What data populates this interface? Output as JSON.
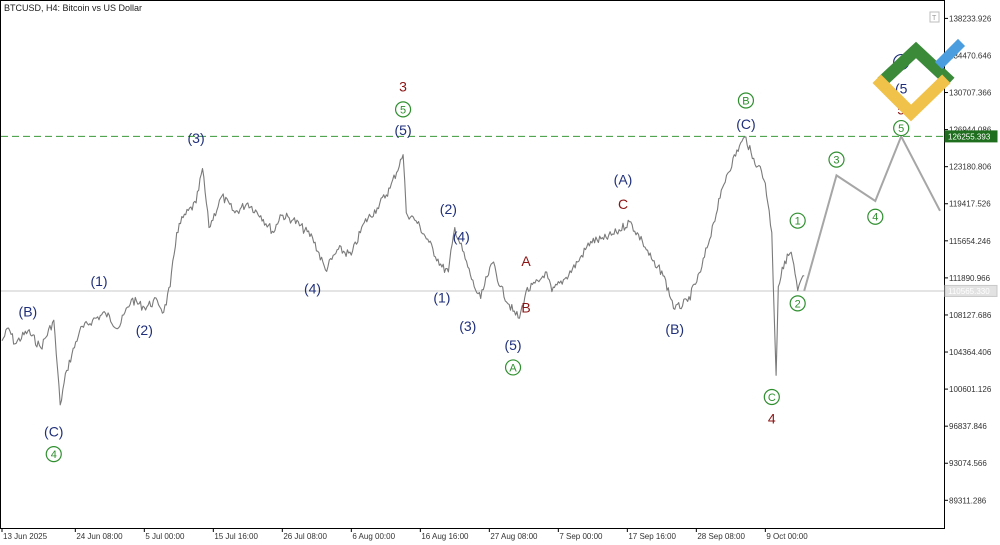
{
  "header": {
    "title": "BTCUSD, H4:  Bitcoin vs US Dollar"
  },
  "colors": {
    "price": "#7a7a7a",
    "forecast": "#a6a6a6",
    "navy": "#1f2f7a",
    "green": "#2f8f2f",
    "dark_red": "#8b1414",
    "resistance": "#3a9a3a",
    "current_price_line": "#c8c8c8",
    "logo_green": "#3a8a3a",
    "logo_yellow": "#f1c24a",
    "logo_blue": "#4a9ee0"
  },
  "chart_data": {
    "type": "line",
    "ylim": [
      86500,
      140000
    ],
    "y_ticks": [
      "138233.926",
      "134470.646",
      "130707.366",
      "126944.086",
      "123180.806",
      "119417.526",
      "115654.246",
      "111890.966",
      "108127.686",
      "104364.406",
      "100601.126",
      "96837.846",
      "93074.566",
      "89311.286"
    ],
    "x_ticks": [
      "13 Jun 2025",
      "24 Jun 08:00",
      "5 Jul 00:00",
      "15 Jul 16:00",
      "26 Jul 08:00",
      "6 Aug 00:00",
      "16 Aug 16:00",
      "27 Aug 08:00",
      "7 Sep 00:00",
      "17 Sep 16:00",
      "28 Sep 08:00",
      "9 Oct 00:00"
    ],
    "series": [
      {
        "kind": "price",
        "points": [
          [
            "13 Jun 2025",
            105500
          ],
          [
            "14 Jun 2025",
            106800
          ],
          [
            "15 Jun 2025",
            105200
          ],
          [
            "17 Jun 2025",
            106500
          ],
          [
            "19 Jun 2025",
            104800
          ],
          [
            "21 Jun 2025",
            107600
          ],
          [
            "22 Jun 2025",
            99000
          ],
          [
            "23 Jun 2025",
            102500
          ],
          [
            "25 Jun 2025",
            106500
          ],
          [
            "27 Jun 2025",
            107600
          ],
          [
            "29 Jun 2025",
            108300
          ],
          [
            "1 Jul 2025",
            106800
          ],
          [
            "3 Jul 2025",
            109700
          ],
          [
            "5 Jul 2025",
            108900
          ],
          [
            "7 Jul 2025",
            109600
          ],
          [
            "8 Jul 2025",
            108400
          ],
          [
            "9 Jul 2025",
            111000
          ],
          [
            "10 Jul 2025",
            116500
          ],
          [
            "11 Jul 2025",
            118000
          ],
          [
            "13 Jul 2025",
            119500
          ],
          [
            "14 Jul 2025",
            123000
          ],
          [
            "15 Jul 2025",
            117000
          ],
          [
            "17 Jul 2025",
            120200
          ],
          [
            "19 Jul 2025",
            118500
          ],
          [
            "21 Jul 2025",
            119500
          ],
          [
            "23 Jul 2025",
            118200
          ],
          [
            "25 Jul 2025",
            116500
          ],
          [
            "26 Jul 2025",
            118300
          ],
          [
            "28 Jul 2025",
            117800
          ],
          [
            "31 Jul 2025",
            116000
          ],
          [
            "2 Aug 2025",
            112700
          ],
          [
            "4 Aug 2025",
            114800
          ],
          [
            "6 Aug 2025",
            114200
          ],
          [
            "8 Aug 2025",
            117500
          ],
          [
            "10 Aug 2025",
            119000
          ],
          [
            "12 Aug 2025",
            121000
          ],
          [
            "14 Aug 2025",
            124400
          ],
          [
            "14 Aug 2025 12:00",
            118500
          ],
          [
            "16 Aug 2025",
            117700
          ],
          [
            "18 Aug 2025",
            115500
          ],
          [
            "20 Aug 2025",
            113000
          ],
          [
            "21 Aug 2025",
            112500
          ],
          [
            "22 Aug 2025",
            117000
          ],
          [
            "24 Aug 2025",
            113000
          ],
          [
            "25 Aug 2025",
            111000
          ],
          [
            "26 Aug 2025",
            109800
          ],
          [
            "27 Aug 2025",
            112000
          ],
          [
            "28 Aug 2025",
            113500
          ],
          [
            "29 Aug 2025",
            111000
          ],
          [
            "31 Aug 2025",
            108500
          ],
          [
            "1 Sep 2025",
            107800
          ],
          [
            "2 Sep 2025",
            110500
          ],
          [
            "4 Sep 2025",
            111500
          ],
          [
            "5 Sep 2025",
            112500
          ],
          [
            "6 Sep 2025",
            110500
          ],
          [
            "8 Sep 2025",
            111800
          ],
          [
            "10 Sep 2025",
            113500
          ],
          [
            "12 Sep 2025",
            115600
          ],
          [
            "14 Sep 2025",
            115800
          ],
          [
            "16 Sep 2025",
            116500
          ],
          [
            "18 Sep 2025",
            117600
          ],
          [
            "20 Sep 2025",
            115600
          ],
          [
            "22 Sep 2025",
            113000
          ],
          [
            "23 Sep 2025",
            112600
          ],
          [
            "25 Sep 2025",
            108700
          ],
          [
            "27 Sep 2025",
            109500
          ],
          [
            "29 Sep 2025",
            112500
          ],
          [
            "1 Oct 2025",
            117500
          ],
          [
            "2 Oct 2025",
            120000
          ],
          [
            "3 Oct 2025",
            122300
          ],
          [
            "5 Oct 2025",
            125300
          ],
          [
            "6 Oct 2025",
            126200
          ],
          [
            "7 Oct 2025",
            124000
          ],
          [
            "8 Oct 2025",
            123300
          ],
          [
            "9 Oct 2025",
            121500
          ],
          [
            "10 Oct 2025",
            116500
          ],
          [
            "10 Oct 2025 16:00",
            102000
          ],
          [
            "11 Oct 2025",
            111000
          ],
          [
            "12 Oct 2025",
            113600
          ],
          [
            "13 Oct 2025",
            114500
          ],
          [
            "14 Oct 2025",
            110600
          ],
          [
            "15 Oct 2025",
            112100
          ]
        ]
      },
      {
        "kind": "forecast",
        "points": [
          [
            "15 Oct 2025",
            110566
          ],
          [
            "20 Oct 2025",
            122300
          ],
          [
            "26 Oct 2025",
            119700
          ],
          [
            "30 Oct 2025",
            126255
          ],
          [
            "5 Nov 2025",
            118700
          ]
        ]
      }
    ],
    "reference_lines": [
      {
        "label": "126255.393",
        "value": 126255,
        "style": "dashed-green"
      },
      {
        "label": "110565.330",
        "value": 110566,
        "style": "solid-grey"
      }
    ],
    "annotations": [
      {
        "text": "(B)",
        "x": "17 Jun 2025",
        "y": 108500,
        "color": "navy",
        "circled": false
      },
      {
        "text": "(C)",
        "x": "21 Jun 2025",
        "y": 96300,
        "color": "navy",
        "circled": false
      },
      {
        "text": "4",
        "x": "21 Jun 2025",
        "y": 94000,
        "color": "green",
        "circled": true
      },
      {
        "text": "(1)",
        "x": "28 Jun 2025",
        "y": 111600,
        "color": "navy",
        "circled": false
      },
      {
        "text": "(2)",
        "x": "5 Jul 2025",
        "y": 106600,
        "color": "navy",
        "circled": false
      },
      {
        "text": "(3)",
        "x": "13 Jul 2025",
        "y": 126100,
        "color": "navy",
        "circled": false
      },
      {
        "text": "(4)",
        "x": "31 Jul 2025",
        "y": 110800,
        "color": "navy",
        "circled": false
      },
      {
        "text": "3",
        "x": "14 Aug 2025",
        "y": 131300,
        "color": "dark_red",
        "circled": false
      },
      {
        "text": "5",
        "x": "14 Aug 2025",
        "y": 129000,
        "color": "green",
        "circled": true
      },
      {
        "text": "(5)",
        "x": "14 Aug 2025",
        "y": 126900,
        "color": "navy",
        "circled": false
      },
      {
        "text": "(2)",
        "x": "21 Aug 2025",
        "y": 118900,
        "color": "navy",
        "circled": false
      },
      {
        "text": "(1)",
        "x": "20 Aug 2025",
        "y": 109900,
        "color": "navy",
        "circled": false
      },
      {
        "text": "(4)",
        "x": "23 Aug 2025",
        "y": 116100,
        "color": "navy",
        "circled": false
      },
      {
        "text": "(3)",
        "x": "24 Aug 2025",
        "y": 107000,
        "color": "navy",
        "circled": false
      },
      {
        "text": "(5)",
        "x": "31 Aug 2025",
        "y": 105100,
        "color": "navy",
        "circled": false
      },
      {
        "text": "A",
        "x": "31 Aug 2025",
        "y": 102800,
        "color": "green",
        "circled": true
      },
      {
        "text": "A",
        "x": "2 Sep 2025",
        "y": 113600,
        "color": "dark_red",
        "circled": false
      },
      {
        "text": "B",
        "x": "2 Sep 2025",
        "y": 108900,
        "color": "dark_red",
        "circled": false
      },
      {
        "text": "(A)",
        "x": "17 Sep 2025",
        "y": 121900,
        "color": "navy",
        "circled": false
      },
      {
        "text": "C",
        "x": "17 Sep 2025",
        "y": 119400,
        "color": "dark_red",
        "circled": false
      },
      {
        "text": "(B)",
        "x": "25 Sep 2025",
        "y": 106700,
        "color": "navy",
        "circled": false
      },
      {
        "text": "B",
        "x": "6 Oct 2025",
        "y": 129900,
        "color": "green",
        "circled": true
      },
      {
        "text": "(C)",
        "x": "6 Oct 2025",
        "y": 127500,
        "color": "navy",
        "circled": false
      },
      {
        "text": "C",
        "x": "10 Oct 2025",
        "y": 99800,
        "color": "green",
        "circled": true
      },
      {
        "text": "4",
        "x": "10 Oct 2025",
        "y": 97600,
        "color": "dark_red",
        "circled": false
      },
      {
        "text": "1",
        "x": "14 Oct 2025",
        "y": 117700,
        "color": "green",
        "circled": true
      },
      {
        "text": "2",
        "x": "14 Oct 2025",
        "y": 109300,
        "color": "green",
        "circled": true
      },
      {
        "text": "3",
        "x": "20 Oct 2025",
        "y": 123900,
        "color": "green",
        "circled": true
      },
      {
        "text": "4",
        "x": "26 Oct 2025",
        "y": 118100,
        "color": "green",
        "circled": true
      },
      {
        "text": "(5",
        "x": "30 Oct 2025",
        "y": 131100,
        "color": "navy",
        "circled": false
      },
      {
        "text": "5",
        "x": "30 Oct 2025",
        "y": 129000,
        "color": "dark_red",
        "circled": false
      },
      {
        "text": "5",
        "x": "30 Oct 2025",
        "y": 127100,
        "color": "green",
        "circled": true
      },
      {
        "text": "5",
        "x": "30 Oct 2025",
        "y": 133800,
        "color": "navy",
        "circled": true
      }
    ],
    "grid": false
  }
}
